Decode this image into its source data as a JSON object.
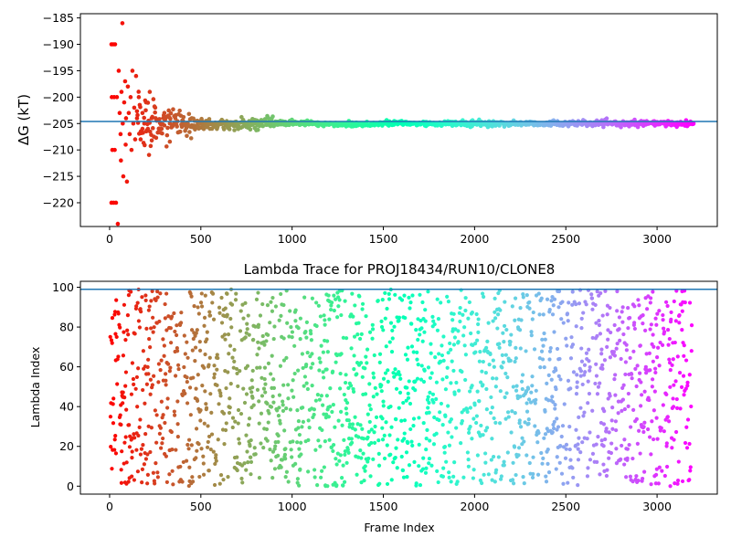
{
  "chart_data": [
    {
      "type": "scatter",
      "title": "",
      "xlabel": "",
      "ylabel": "ΔG (kT)",
      "xlim": [
        -160,
        3330
      ],
      "ylim": [
        -224.5,
        -184.2
      ],
      "xticks": [
        0,
        500,
        1000,
        1500,
        2000,
        2500,
        3000
      ],
      "yticks": [
        -220,
        -215,
        -210,
        -205,
        -200,
        -195,
        -190,
        -185
      ],
      "xtick_labels": [
        "0",
        "500",
        "1000",
        "1500",
        "2000",
        "2500",
        "3000"
      ],
      "ytick_labels": [
        "−220",
        "−215",
        "−210",
        "−205",
        "−200",
        "−195",
        "−190",
        "−185"
      ],
      "hline": -204.6,
      "hline_color": "#1f77b4",
      "colormap": "rainbow (red at frame 0 to violet at frame 3200)",
      "n_frames": 3200,
      "points": [
        [
          10,
          -190
        ],
        [
          20,
          -190
        ],
        [
          30,
          -190
        ],
        [
          12,
          -200
        ],
        [
          25,
          -200
        ],
        [
          40,
          -200
        ],
        [
          15,
          -210
        ],
        [
          28,
          -210
        ],
        [
          10,
          -220
        ],
        [
          22,
          -220
        ],
        [
          35,
          -220
        ],
        [
          45,
          -224
        ],
        [
          50,
          -195
        ],
        [
          55,
          -203
        ],
        [
          60,
          -207
        ],
        [
          62,
          -212
        ],
        [
          65,
          -199
        ],
        [
          70,
          -186
        ],
        [
          72,
          -205
        ],
        [
          75,
          -215
        ],
        [
          80,
          -201
        ],
        [
          85,
          -197
        ],
        [
          88,
          -209
        ],
        [
          90,
          -204
        ],
        [
          95,
          -216
        ],
        [
          100,
          -198
        ],
        [
          105,
          -203
        ],
        [
          110,
          -207
        ],
        [
          115,
          -200
        ],
        [
          120,
          -210
        ],
        [
          125,
          -195
        ],
        [
          130,
          -205
        ],
        [
          135,
          -202
        ],
        [
          140,
          -208
        ],
        [
          145,
          -196
        ],
        [
          150,
          -204
        ],
        [
          160,
          -200
        ],
        [
          170,
          -208
        ],
        [
          180,
          -203
        ],
        [
          190,
          -205
        ],
        [
          200,
          -201
        ],
        [
          210,
          -206
        ],
        [
          220,
          -199
        ],
        [
          230,
          -204
        ],
        [
          250,
          -202
        ],
        [
          270,
          -206
        ],
        [
          300,
          -203
        ],
        [
          330,
          -205
        ],
        [
          360,
          -204
        ],
        [
          400,
          -205
        ],
        [
          450,
          -204
        ],
        [
          500,
          -205
        ],
        [
          550,
          -206
        ],
        [
          600,
          -205
        ],
        [
          700,
          -205
        ],
        [
          800,
          -205
        ],
        [
          900,
          -205.5
        ],
        [
          1000,
          -205
        ],
        [
          1100,
          -205
        ],
        [
          1200,
          -205
        ],
        [
          1300,
          -205
        ],
        [
          1400,
          -205
        ],
        [
          1500,
          -205
        ],
        [
          1600,
          -204.5
        ],
        [
          1700,
          -205
        ],
        [
          1800,
          -205
        ],
        [
          1900,
          -205
        ],
        [
          2000,
          -205
        ],
        [
          2100,
          -205
        ],
        [
          2200,
          -205
        ],
        [
          2300,
          -205
        ],
        [
          2400,
          -205
        ],
        [
          2500,
          -205
        ],
        [
          2600,
          -205
        ],
        [
          2700,
          -205
        ],
        [
          2800,
          -205
        ],
        [
          2900,
          -205
        ],
        [
          3000,
          -205
        ],
        [
          3100,
          -205
        ],
        [
          3200,
          -205
        ]
      ]
    },
    {
      "type": "scatter",
      "title": "Lambda Trace for PROJ18434/RUN10/CLONE8",
      "xlabel": "Frame Index",
      "ylabel": "Lambda Index",
      "xlim": [
        -160,
        3330
      ],
      "ylim": [
        -4,
        103
      ],
      "xticks": [
        0,
        500,
        1000,
        1500,
        2000,
        2500,
        3000
      ],
      "yticks": [
        0,
        20,
        40,
        60,
        80,
        100
      ],
      "xtick_labels": [
        "0",
        "500",
        "1000",
        "1500",
        "2000",
        "2500",
        "3000"
      ],
      "ytick_labels": [
        "0",
        "20",
        "40",
        "60",
        "80",
        "100"
      ],
      "hline": 99,
      "hline_color": "#1f77b4",
      "colormap": "rainbow (red at frame 0 to violet at frame 3200)",
      "n_frames": 3200,
      "value_range": [
        0,
        99
      ],
      "distribution": "lambda index values spread roughly uniformly between 0 and 99 across all frames"
    }
  ]
}
